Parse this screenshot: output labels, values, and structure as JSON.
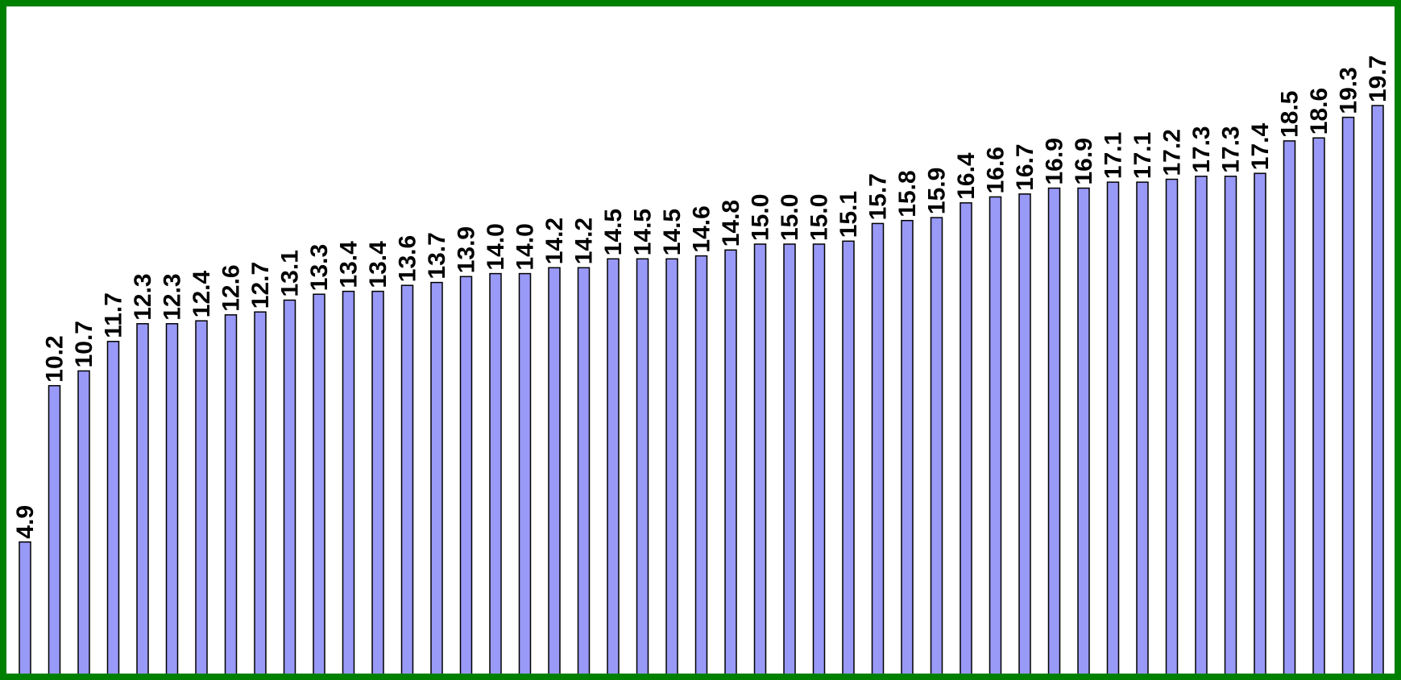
{
  "chart_data": {
    "type": "bar",
    "values": [
      4.9,
      10.2,
      10.7,
      11.7,
      12.3,
      12.3,
      12.4,
      12.6,
      12.7,
      13.1,
      13.3,
      13.4,
      13.4,
      13.6,
      13.7,
      13.9,
      14.0,
      14.0,
      14.2,
      14.2,
      14.5,
      14.5,
      14.5,
      14.6,
      14.8,
      15.0,
      15.0,
      15.0,
      15.1,
      15.7,
      15.8,
      15.9,
      16.4,
      16.6,
      16.7,
      16.9,
      16.9,
      17.1,
      17.1,
      17.2,
      17.3,
      17.3,
      17.4,
      18.5,
      18.6,
      19.3,
      19.7
    ],
    "labels": [
      "4.9",
      "10.2",
      "10.7",
      "11.7",
      "12.3",
      "12.3",
      "12.4",
      "12.6",
      "12.7",
      "13.1",
      "13.3",
      "13.4",
      "13.4",
      "13.6",
      "13.7",
      "13.9",
      "14.0",
      "14.0",
      "14.2",
      "14.2",
      "14.5",
      "14.5",
      "14.5",
      "14.6",
      "14.8",
      "15.0",
      "15.0",
      "15.0",
      "15.1",
      "15.7",
      "15.8",
      "15.9",
      "16.4",
      "16.6",
      "16.7",
      "16.9",
      "16.9",
      "17.1",
      "17.1",
      "17.2",
      "17.3",
      "17.3",
      "17.4",
      "18.5",
      "18.6",
      "19.3",
      "19.7"
    ],
    "bar_color": "#9999f7",
    "bar_border_color": "#000000",
    "frame_color": "#008000",
    "value_labels": "rotated-vertical-above-bars",
    "grid": false
  }
}
